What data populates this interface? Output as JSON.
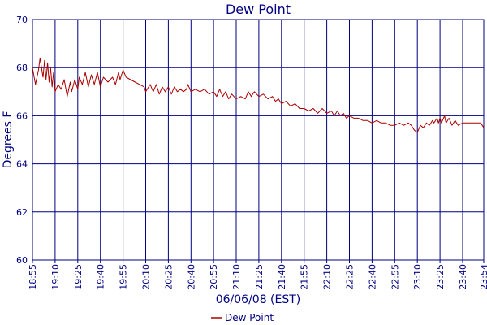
{
  "chart_data": {
    "type": "line",
    "title": "Dew Point",
    "xlabel": "06/06/08 (EST)",
    "ylabel": "Degrees F",
    "ylim": [
      60,
      70
    ],
    "y_ticks": [
      "60",
      "62",
      "64",
      "66",
      "68",
      "70"
    ],
    "x_ticks": [
      "18:55",
      "19:10",
      "19:25",
      "19:40",
      "19:55",
      "20:10",
      "20:25",
      "20:40",
      "20:55",
      "21:10",
      "21:25",
      "21:40",
      "21:55",
      "22:10",
      "22:25",
      "22:40",
      "22:55",
      "23:10",
      "23:25",
      "23:40",
      "23:54"
    ],
    "x_range": [
      "18:55",
      "23:54"
    ],
    "grid": true,
    "legend_position": "bottom-center",
    "colors": {
      "line": "#aa0000",
      "grid": "#000080",
      "text": "#000080",
      "frame": "#000080"
    },
    "series": [
      {
        "name": "Dew Point",
        "points": [
          [
            "18:55",
            68.0
          ],
          [
            "18:57",
            67.3
          ],
          [
            "18:59",
            67.9
          ],
          [
            "19:00",
            68.4
          ],
          [
            "19:02",
            67.6
          ],
          [
            "19:03",
            68.3
          ],
          [
            "19:04",
            67.5
          ],
          [
            "19:05",
            68.2
          ],
          [
            "19:06",
            67.4
          ],
          [
            "19:07",
            68.0
          ],
          [
            "19:08",
            67.2
          ],
          [
            "19:09",
            67.8
          ],
          [
            "19:10",
            67.0
          ],
          [
            "19:12",
            67.3
          ],
          [
            "19:14",
            67.1
          ],
          [
            "19:16",
            67.5
          ],
          [
            "19:18",
            66.8
          ],
          [
            "19:20",
            67.4
          ],
          [
            "19:21",
            67.0
          ],
          [
            "19:23",
            67.5
          ],
          [
            "19:25",
            67.1
          ],
          [
            "19:26",
            67.6
          ],
          [
            "19:28",
            67.3
          ],
          [
            "19:30",
            67.8
          ],
          [
            "19:32",
            67.2
          ],
          [
            "19:34",
            67.7
          ],
          [
            "19:36",
            67.3
          ],
          [
            "19:38",
            67.8
          ],
          [
            "19:40",
            67.2
          ],
          [
            "19:42",
            67.6
          ],
          [
            "19:45",
            67.4
          ],
          [
            "19:48",
            67.6
          ],
          [
            "19:50",
            67.3
          ],
          [
            "19:52",
            67.8
          ],
          [
            "19:53",
            67.5
          ],
          [
            "19:55",
            67.9
          ],
          [
            "19:57",
            67.6
          ],
          [
            "20:00",
            67.5
          ],
          [
            "20:03",
            67.4
          ],
          [
            "20:06",
            67.3
          ],
          [
            "20:09",
            67.2
          ],
          [
            "20:10",
            67.0
          ],
          [
            "20:13",
            67.3
          ],
          [
            "20:15",
            67.0
          ],
          [
            "20:17",
            67.3
          ],
          [
            "20:19",
            66.9
          ],
          [
            "20:21",
            67.2
          ],
          [
            "20:23",
            67.0
          ],
          [
            "20:25",
            67.2
          ],
          [
            "20:27",
            66.9
          ],
          [
            "20:29",
            67.2
          ],
          [
            "20:31",
            67.0
          ],
          [
            "20:33",
            67.1
          ],
          [
            "20:35",
            67.0
          ],
          [
            "20:37",
            67.1
          ],
          [
            "20:38",
            67.3
          ],
          [
            "20:40",
            67.0
          ],
          [
            "20:43",
            67.1
          ],
          [
            "20:46",
            67.0
          ],
          [
            "20:49",
            67.1
          ],
          [
            "20:52",
            66.9
          ],
          [
            "20:55",
            67.0
          ],
          [
            "20:57",
            66.8
          ],
          [
            "20:59",
            67.1
          ],
          [
            "21:01",
            66.8
          ],
          [
            "21:03",
            67.0
          ],
          [
            "21:05",
            66.7
          ],
          [
            "21:07",
            66.9
          ],
          [
            "21:10",
            66.7
          ],
          [
            "21:13",
            66.8
          ],
          [
            "21:16",
            66.7
          ],
          [
            "21:18",
            67.0
          ],
          [
            "21:20",
            66.8
          ],
          [
            "21:22",
            67.0
          ],
          [
            "21:25",
            66.8
          ],
          [
            "21:28",
            66.9
          ],
          [
            "21:31",
            66.7
          ],
          [
            "21:34",
            66.8
          ],
          [
            "21:36",
            66.6
          ],
          [
            "21:38",
            66.7
          ],
          [
            "21:40",
            66.5
          ],
          [
            "21:43",
            66.6
          ],
          [
            "21:46",
            66.4
          ],
          [
            "21:49",
            66.5
          ],
          [
            "21:52",
            66.3
          ],
          [
            "21:55",
            66.3
          ],
          [
            "21:58",
            66.2
          ],
          [
            "22:01",
            66.3
          ],
          [
            "22:04",
            66.1
          ],
          [
            "22:07",
            66.3
          ],
          [
            "22:10",
            66.1
          ],
          [
            "22:13",
            66.2
          ],
          [
            "22:15",
            66.0
          ],
          [
            "22:17",
            66.2
          ],
          [
            "22:19",
            66.0
          ],
          [
            "22:21",
            66.1
          ],
          [
            "22:23",
            65.9
          ],
          [
            "22:25",
            66.0
          ],
          [
            "22:28",
            65.9
          ],
          [
            "22:31",
            65.9
          ],
          [
            "22:34",
            65.8
          ],
          [
            "22:37",
            65.8
          ],
          [
            "22:40",
            65.7
          ],
          [
            "22:43",
            65.8
          ],
          [
            "22:46",
            65.7
          ],
          [
            "22:49",
            65.7
          ],
          [
            "22:52",
            65.6
          ],
          [
            "22:55",
            65.6
          ],
          [
            "22:58",
            65.7
          ],
          [
            "23:01",
            65.6
          ],
          [
            "23:04",
            65.7
          ],
          [
            "23:06",
            65.6
          ],
          [
            "23:08",
            65.4
          ],
          [
            "23:10",
            65.3
          ],
          [
            "23:12",
            65.6
          ],
          [
            "23:14",
            65.5
          ],
          [
            "23:16",
            65.7
          ],
          [
            "23:18",
            65.6
          ],
          [
            "23:20",
            65.8
          ],
          [
            "23:21",
            65.7
          ],
          [
            "23:23",
            65.9
          ],
          [
            "23:24",
            65.7
          ],
          [
            "23:25",
            65.9
          ],
          [
            "23:26",
            65.7
          ],
          [
            "23:28",
            66.0
          ],
          [
            "23:29",
            65.7
          ],
          [
            "23:31",
            65.9
          ],
          [
            "23:33",
            65.6
          ],
          [
            "23:35",
            65.8
          ],
          [
            "23:37",
            65.6
          ],
          [
            "23:40",
            65.7
          ],
          [
            "23:43",
            65.7
          ],
          [
            "23:46",
            65.7
          ],
          [
            "23:49",
            65.7
          ],
          [
            "23:52",
            65.7
          ],
          [
            "23:54",
            65.5
          ]
        ]
      }
    ]
  }
}
